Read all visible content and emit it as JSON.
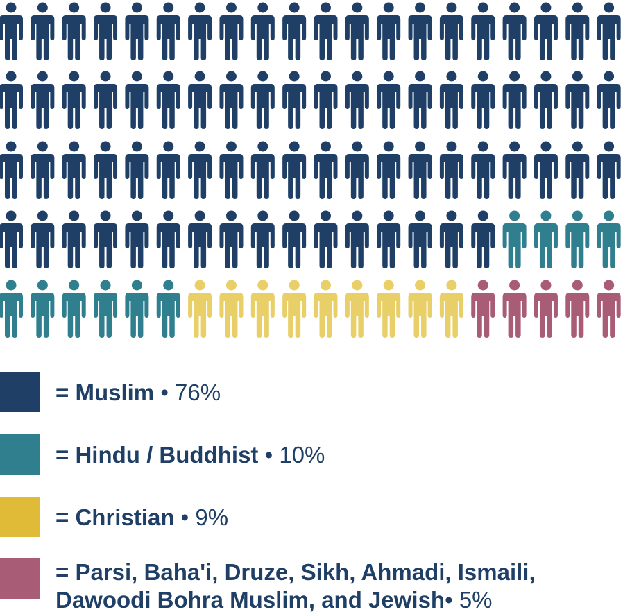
{
  "chart_data": {
    "type": "waffle",
    "title": "",
    "total_icons": 100,
    "grid": {
      "rows": 5,
      "columns": 20
    },
    "icon": "person-icon",
    "series": [
      {
        "name": "Muslim",
        "value": 76,
        "pct_label": "76%",
        "color": "#1f3f66"
      },
      {
        "name": "Hindu / Buddhist",
        "value": 10,
        "pct_label": "10%",
        "color": "#2f7f8f"
      },
      {
        "name": "Christian",
        "value": 9,
        "pct_label": "9%",
        "color": "#e8cf68"
      },
      {
        "name": "Parsi, Baha'i, Druze, Sikh, Ahmadi, Ismaili, Dawoodi Bohra Muslim, and Jewish",
        "value": 5,
        "pct_label": "5%",
        "color": "#a85c75"
      }
    ],
    "legend": [
      {
        "prefix": "=",
        "name": "Muslim",
        "separator": "•",
        "pct_label": "76%",
        "swatch_color": "#1f3f66"
      },
      {
        "prefix": "=",
        "name": "Hindu / Buddhist",
        "separator": "•",
        "pct_label": "10%",
        "swatch_color": "#2f7f8f"
      },
      {
        "prefix": "=",
        "name": "Christian",
        "separator": "•",
        "pct_label": "9%",
        "swatch_color": "#dfbb38"
      },
      {
        "prefix": "=",
        "name": "Parsi, Baha'i, Druze, Sikh, Ahmadi, Ismaili, Dawoodi Bohra Muslim, and Jewish",
        "separator": "•",
        "pct_label": "5%",
        "swatch_color": "#a85c75"
      }
    ]
  }
}
